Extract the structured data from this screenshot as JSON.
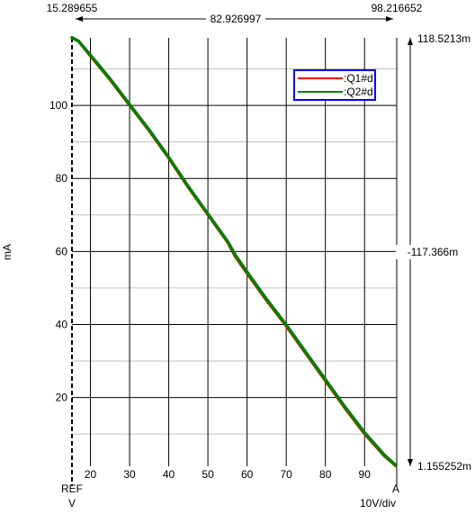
{
  "chart_data": {
    "type": "line",
    "xlabel": "V",
    "ylabel": "mA",
    "xlim": [
      15.289655,
      98.216652
    ],
    "ylim": [
      1.155252,
      118.5213
    ],
    "x_ticks": [
      "20",
      "30",
      "40",
      "50",
      "60",
      "70",
      "80",
      "90"
    ],
    "y_ticks": [
      "20",
      "40",
      "60",
      "80",
      "100"
    ],
    "x_scale_label": "10V/div",
    "ref_label": "REF",
    "a_label": "A",
    "x_cursor_ref": "15.289655",
    "x_cursor_a": "98.216652",
    "x_cursor_delta": "82.926997",
    "y_cursor_top": "118.5213m",
    "y_cursor_bottom": "1.155252m",
    "y_cursor_delta": "-117.366m",
    "grid": true,
    "legend_position": "top-right",
    "series": [
      {
        "name": ":Q1#d",
        "color": "#ff0000",
        "x": [
          15.3,
          17,
          20,
          25,
          30,
          35,
          40,
          45,
          50,
          55,
          57,
          60,
          65,
          70,
          75,
          80,
          85,
          90,
          95,
          98
        ],
        "values": [
          118.5,
          117.5,
          113.5,
          107,
          100,
          93,
          85.5,
          77.5,
          70,
          62.5,
          58.5,
          54,
          46.5,
          39.5,
          32,
          24.5,
          17,
          10,
          4,
          1.2
        ]
      },
      {
        "name": ":Q2#d",
        "color": "#008000",
        "x": [
          15.3,
          17,
          20,
          25,
          30,
          35,
          40,
          45,
          50,
          55,
          57,
          60,
          65,
          70,
          75,
          80,
          85,
          90,
          95,
          98
        ],
        "values": [
          118.6,
          117.6,
          113.8,
          107.3,
          100.3,
          93.3,
          85.8,
          77.8,
          70.3,
          62.8,
          59,
          54.4,
          46.9,
          39.9,
          32.4,
          24.9,
          17.4,
          10.4,
          4.3,
          1.4
        ]
      }
    ]
  }
}
